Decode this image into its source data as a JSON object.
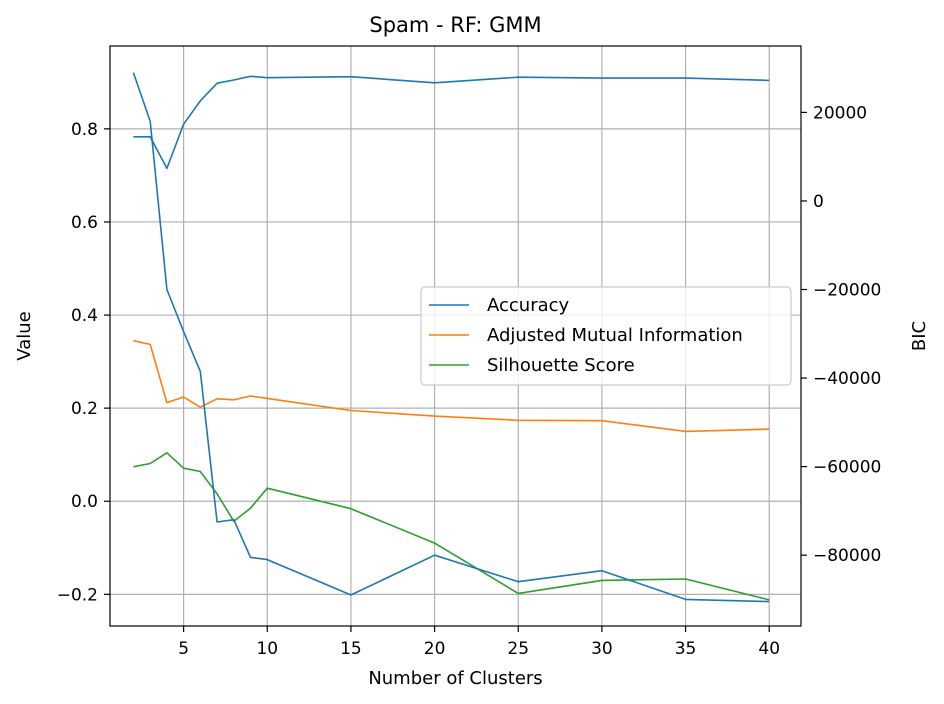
{
  "chart_data": {
    "type": "line",
    "title": "Spam - RF: GMM",
    "xlabel": "Number of Clusters",
    "ylabel": "Value",
    "y2label": "BIC",
    "xlim": [
      0.6,
      41.9
    ],
    "ylim": [
      -0.268,
      0.978
    ],
    "y2lim": [
      -96000,
      35000
    ],
    "xticks": [
      5,
      10,
      15,
      20,
      25,
      30,
      35,
      40
    ],
    "yticks": [
      -0.2,
      0.0,
      0.2,
      0.4,
      0.6,
      0.8
    ],
    "ytick_labels": [
      "−0.2",
      "0.0",
      "0.2",
      "0.4",
      "0.6",
      "0.8"
    ],
    "y2ticks": [
      -80000,
      -60000,
      -40000,
      -20000,
      0,
      20000
    ],
    "y2tick_labels": [
      "−80000",
      "−60000",
      "−40000",
      "−20000",
      "0",
      "20000"
    ],
    "grid": true,
    "legend_position": "center-right",
    "x": [
      2,
      3,
      4,
      5,
      6,
      7,
      8,
      9,
      10,
      15,
      20,
      25,
      30,
      35,
      40
    ],
    "series": [
      {
        "name": "Accuracy",
        "axis": "left",
        "color": "#1f77b4",
        "values": [
          0.783,
          0.783,
          0.715,
          0.81,
          0.86,
          0.898,
          0.905,
          0.913,
          0.91,
          0.912,
          0.899,
          0.911,
          0.909,
          0.909,
          0.904
        ]
      },
      {
        "name": "Adjusted Mutual Information",
        "axis": "left",
        "color": "#ff7f0e",
        "values": [
          0.345,
          0.337,
          0.212,
          0.224,
          0.202,
          0.22,
          0.218,
          0.226,
          0.221,
          0.195,
          0.183,
          0.174,
          0.173,
          0.15,
          0.155
        ]
      },
      {
        "name": "Silhouette Score",
        "axis": "left",
        "color": "#2ca02c",
        "values": [
          0.074,
          0.081,
          0.104,
          0.071,
          0.064,
          0.016,
          -0.043,
          -0.015,
          0.028,
          -0.016,
          -0.09,
          -0.198,
          -0.17,
          -0.167,
          -0.212
        ]
      },
      {
        "name": "BIC",
        "axis": "right",
        "color": "#1f77b4",
        "legend": false,
        "values": [
          29000,
          18000,
          -20000,
          -29500,
          -38500,
          -72500,
          -72000,
          -80500,
          -81000,
          -89000,
          -80000,
          -86000,
          -83500,
          -90000,
          -90500
        ]
      }
    ]
  }
}
